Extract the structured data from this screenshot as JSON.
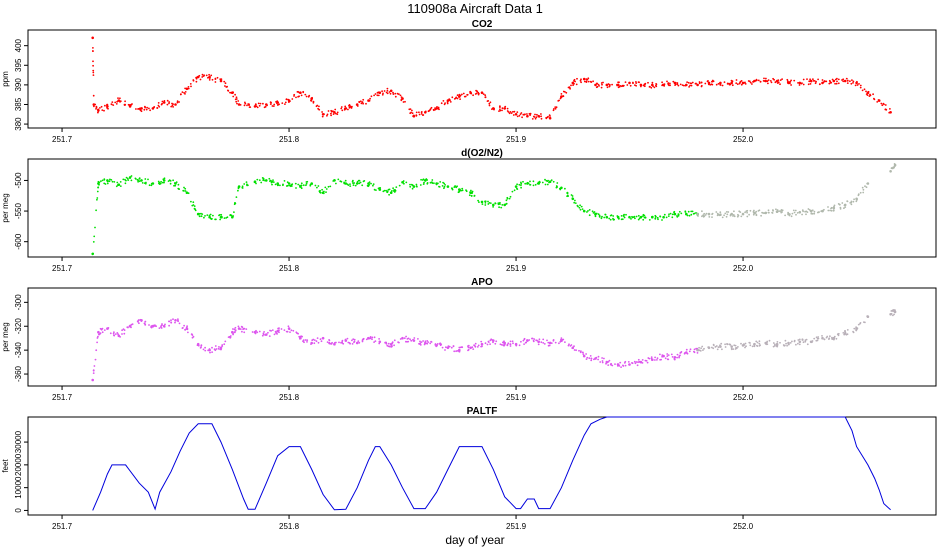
{
  "figure": {
    "title": "110908a   Aircraft Data 1",
    "xlabel": "day of year"
  },
  "chart_data": [
    {
      "type": "scatter",
      "title": "CO2",
      "ylabel": "ppm",
      "xlim": [
        251.685,
        252.085
      ],
      "ylim": [
        379,
        404
      ],
      "xticks": [
        251.7,
        251.8,
        251.9,
        252.0
      ],
      "xtick_labels": [
        "251.7",
        "251.8",
        "251.9",
        "252.0"
      ],
      "yticks": [
        380,
        385,
        390,
        395,
        400
      ],
      "ytick_labels": [
        "380",
        "385",
        "390",
        "395",
        "400"
      ],
      "series": [
        {
          "name": "co2",
          "color": "#ff0000",
          "x": [
            251.7135,
            251.714,
            251.716,
            251.72,
            251.725,
            251.73,
            251.735,
            251.74,
            251.745,
            251.75,
            251.755,
            251.76,
            251.765,
            251.77,
            251.775,
            251.778,
            251.785,
            251.79,
            251.795,
            251.8,
            251.805,
            251.81,
            251.815,
            251.82,
            251.825,
            251.83,
            251.835,
            251.84,
            251.845,
            251.85,
            251.855,
            251.86,
            251.865,
            251.87,
            251.875,
            251.88,
            251.885,
            251.89,
            251.895,
            251.9,
            251.905,
            251.91,
            251.915,
            251.92,
            251.925,
            251.93,
            251.935,
            251.94,
            251.945,
            251.95,
            251.955,
            251.96,
            251.965,
            251.97,
            251.975,
            251.98,
            251.985,
            251.99,
            251.995,
            252.0,
            252.005,
            252.01,
            252.015,
            252.02,
            252.025,
            252.03,
            252.035,
            252.04,
            252.045,
            252.05,
            252.055,
            252.06,
            252.065
          ],
          "y": [
            402,
            385,
            383.5,
            384.5,
            386,
            384.5,
            384,
            384,
            385.5,
            385,
            389,
            392,
            392,
            391,
            388,
            385,
            384.5,
            385,
            385.5,
            386,
            388,
            386.5,
            382.5,
            383,
            384,
            385,
            386,
            388,
            388.5,
            386.5,
            382,
            383,
            384,
            386,
            387,
            388,
            388,
            384,
            384,
            382.5,
            382,
            382,
            381.5,
            387,
            390.5,
            391.5,
            390,
            390,
            390,
            390.5,
            390,
            390,
            390,
            390.5,
            390,
            390,
            390.5,
            390.5,
            390.5,
            390.5,
            391,
            391,
            391,
            390.5,
            390.5,
            391,
            390.5,
            391,
            391,
            390.5,
            388,
            386,
            383
          ]
        }
      ]
    },
    {
      "type": "scatter",
      "title": "d(O2/N2)",
      "ylabel": "per meg",
      "xlim": [
        251.685,
        252.085
      ],
      "ylim": [
        -625,
        -465
      ],
      "xticks": [
        251.7,
        251.8,
        251.9,
        252.0
      ],
      "xtick_labels": [
        "251.7",
        "251.8",
        "251.9",
        "252.0"
      ],
      "yticks": [
        -500,
        -550,
        -600
      ],
      "ytick_labels": [
        "-500",
        "-550",
        "-600"
      ],
      "series": [
        {
          "name": "o2n2",
          "color": "#00e000",
          "x": [
            251.7135,
            251.716,
            251.72,
            251.725,
            251.73,
            251.735,
            251.74,
            251.745,
            251.75,
            251.755,
            251.76,
            251.765,
            251.77,
            251.775,
            251.778,
            251.785,
            251.79,
            251.795,
            251.8,
            251.805,
            251.81,
            251.815,
            251.82,
            251.825,
            251.83,
            251.835,
            251.84,
            251.845,
            251.85,
            251.855,
            251.86,
            251.865,
            251.87,
            251.875,
            251.88,
            251.885,
            251.89,
            251.895,
            251.9,
            251.905,
            251.91,
            251.915,
            251.92,
            251.925,
            251.93,
            251.935,
            251.94,
            251.945,
            251.95,
            251.955,
            251.96,
            251.965,
            251.97,
            251.975,
            251.98
          ],
          "y": [
            -620,
            -505,
            -500,
            -507,
            -495,
            -500,
            -505,
            -500,
            -505,
            -520,
            -555,
            -560,
            -560,
            -560,
            -510,
            -502,
            -500,
            -505,
            -505,
            -510,
            -505,
            -520,
            -500,
            -505,
            -505,
            -505,
            -515,
            -520,
            -503,
            -510,
            -500,
            -505,
            -510,
            -515,
            -520,
            -535,
            -540,
            -540,
            -510,
            -505,
            -505,
            -502,
            -512,
            -530,
            -550,
            -555,
            -560,
            -560,
            -560,
            -560,
            -560,
            -560,
            -555,
            -555,
            -555
          ]
        },
        {
          "name": "o2n2-gray",
          "color": "#b0b8ac",
          "x": [
            251.98,
            251.985,
            251.99,
            251.995,
            252.0,
            252.005,
            252.01,
            252.015,
            252.02,
            252.025,
            252.03,
            252.035,
            252.04,
            252.045,
            252.05,
            252.055,
            252.065,
            252.067
          ],
          "y": [
            -555,
            -555,
            -556,
            -555,
            -555,
            -553,
            -553,
            -551,
            -555,
            -552,
            -550,
            -550,
            -545,
            -540,
            -530,
            -505,
            -485,
            -475
          ]
        }
      ]
    },
    {
      "type": "scatter",
      "title": "APO",
      "ylabel": "per meg",
      "xlim": [
        251.685,
        252.085
      ],
      "ylim": [
        -370,
        -288
      ],
      "xticks": [
        251.7,
        251.8,
        251.9,
        252.0
      ],
      "xtick_labels": [
        "251.7",
        "251.8",
        "251.9",
        "252.0"
      ],
      "yticks": [
        -300,
        -320,
        -340,
        -360
      ],
      "ytick_labels": [
        "-300",
        "-320",
        "-340",
        "-360"
      ],
      "series": [
        {
          "name": "apo",
          "color": "#dd55ee",
          "x": [
            251.7135,
            251.716,
            251.72,
            251.725,
            251.73,
            251.735,
            251.74,
            251.745,
            251.75,
            251.755,
            251.76,
            251.765,
            251.77,
            251.775,
            251.778,
            251.785,
            251.79,
            251.795,
            251.8,
            251.805,
            251.81,
            251.815,
            251.82,
            251.825,
            251.83,
            251.835,
            251.84,
            251.845,
            251.85,
            251.855,
            251.86,
            251.865,
            251.87,
            251.875,
            251.88,
            251.885,
            251.89,
            251.895,
            251.9,
            251.905,
            251.91,
            251.915,
            251.92,
            251.925,
            251.93,
            251.935,
            251.94,
            251.945,
            251.95,
            251.955,
            251.96,
            251.965,
            251.97,
            251.975,
            251.98
          ],
          "y": [
            -365,
            -325,
            -322,
            -328,
            -320,
            -315,
            -320,
            -320,
            -315,
            -322,
            -335,
            -340,
            -338,
            -325,
            -322,
            -325,
            -327,
            -324,
            -322,
            -330,
            -334,
            -330,
            -335,
            -332,
            -334,
            -330,
            -333,
            -335,
            -330,
            -332,
            -334,
            -336,
            -338,
            -340,
            -338,
            -335,
            -332,
            -334,
            -335,
            -332,
            -333,
            -334,
            -332,
            -338,
            -345,
            -347,
            -350,
            -352,
            -352,
            -350,
            -348,
            -345,
            -346,
            -342,
            -340
          ]
        },
        {
          "name": "apo-gray",
          "color": "#b8b0b8",
          "x": [
            251.98,
            251.985,
            251.99,
            251.995,
            252.0,
            252.005,
            252.01,
            252.015,
            252.02,
            252.025,
            252.03,
            252.035,
            252.04,
            252.045,
            252.05,
            252.055,
            252.065,
            252.067
          ],
          "y": [
            -340,
            -338,
            -337,
            -337,
            -336,
            -335,
            -334,
            -335,
            -334,
            -333,
            -333,
            -330,
            -330,
            -326,
            -322,
            -312,
            -310,
            -308
          ]
        }
      ]
    },
    {
      "type": "line",
      "title": "PALTF",
      "ylabel": "feet",
      "xlim": [
        251.685,
        252.085
      ],
      "ylim": [
        -2000,
        41000
      ],
      "xticks": [
        251.7,
        251.8,
        251.9,
        252.0
      ],
      "xtick_labels": [
        "251.7",
        "251.8",
        "251.9",
        "252.0"
      ],
      "yticks": [
        0,
        10000,
        20000,
        30000
      ],
      "ytick_labels": [
        "0",
        "10000",
        "20000",
        "30000"
      ],
      "series": [
        {
          "name": "paltf",
          "color": "#0000dd",
          "x": [
            251.7135,
            251.717,
            251.72,
            251.722,
            251.728,
            251.734,
            251.738,
            251.741,
            251.743,
            251.748,
            251.752,
            251.756,
            251.76,
            251.766,
            251.77,
            251.775,
            251.78,
            251.782,
            251.785,
            251.79,
            251.795,
            251.8,
            251.805,
            251.81,
            251.815,
            251.82,
            251.825,
            251.83,
            251.835,
            251.838,
            251.84,
            251.845,
            251.85,
            251.855,
            251.86,
            251.865,
            251.87,
            251.875,
            251.88,
            251.885,
            251.89,
            251.895,
            251.9,
            251.902,
            251.905,
            251.908,
            251.91,
            251.915,
            251.92,
            251.925,
            251.93,
            251.933,
            251.937,
            251.94,
            252.0,
            252.045,
            252.048,
            252.05,
            252.055,
            252.058,
            252.06,
            252.062,
            252.065
          ],
          "y": [
            0,
            8000,
            16000,
            20000,
            20000,
            12000,
            8000,
            600,
            8000,
            17000,
            26000,
            34000,
            38000,
            38000,
            30000,
            18000,
            5000,
            500,
            500,
            12000,
            24000,
            28000,
            28000,
            18000,
            7000,
            300,
            500,
            10000,
            22000,
            28000,
            28000,
            20000,
            10000,
            800,
            800,
            8000,
            18000,
            28000,
            28000,
            28000,
            18000,
            6000,
            800,
            800,
            5000,
            5000,
            800,
            800,
            10000,
            22000,
            33000,
            38000,
            40000,
            41000,
            41000,
            41000,
            35000,
            28000,
            20000,
            14000,
            9000,
            3000,
            300
          ]
        }
      ]
    }
  ]
}
